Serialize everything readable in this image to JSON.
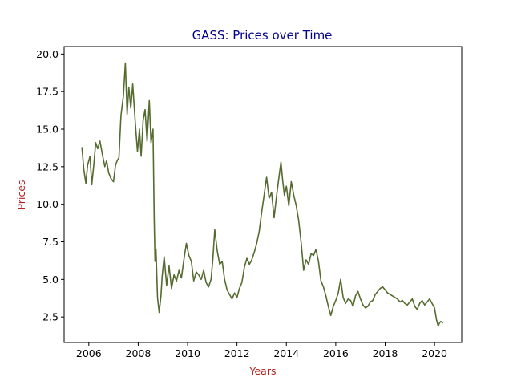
{
  "chart_data": {
    "type": "line",
    "title": "GASS: Prices over Time",
    "xlabel": "Years",
    "ylabel": "Prices",
    "xlim": [
      2005.0,
      2021.1
    ],
    "ylim": [
      0.8,
      20.5
    ],
    "x_ticks": [
      2006,
      2008,
      2010,
      2012,
      2014,
      2016,
      2018,
      2020
    ],
    "x_tick_labels": [
      "2006",
      "2008",
      "2010",
      "2012",
      "2014",
      "2016",
      "2018",
      "2020"
    ],
    "y_ticks": [
      2.5,
      5.0,
      7.5,
      10.0,
      12.5,
      15.0,
      17.5,
      20.0
    ],
    "y_tick_labels": [
      "2.5",
      "5.0",
      "7.5",
      "10.0",
      "12.5",
      "15.0",
      "17.5",
      "20.0"
    ],
    "grid": false,
    "legend": "none",
    "line_color": "#556b2f",
    "series": [
      {
        "x": [
          2005.72,
          2005.8,
          2005.88,
          2005.95,
          2006.05,
          2006.12,
          2006.2,
          2006.28,
          2006.36,
          2006.45,
          2006.55,
          2006.65,
          2006.72,
          2006.8,
          2006.9,
          2007.0,
          2007.08,
          2007.15,
          2007.22,
          2007.3,
          2007.4,
          2007.48,
          2007.55,
          2007.62,
          2007.7,
          2007.78,
          2007.88,
          2007.97,
          2008.05,
          2008.12,
          2008.2,
          2008.28,
          2008.36,
          2008.45,
          2008.52,
          2008.6,
          2008.65,
          2008.68,
          2008.72,
          2008.78,
          2008.85,
          2008.92,
          2008.97,
          2009.05,
          2009.15,
          2009.25,
          2009.35,
          2009.45,
          2009.55,
          2009.65,
          2009.75,
          2009.85,
          2009.95,
          2010.05,
          2010.15,
          2010.25,
          2010.35,
          2010.45,
          2010.55,
          2010.65,
          2010.75,
          2010.85,
          2010.95,
          2011.02,
          2011.1,
          2011.2,
          2011.3,
          2011.4,
          2011.5,
          2011.6,
          2011.7,
          2011.8,
          2011.9,
          2012.0,
          2012.1,
          2012.2,
          2012.3,
          2012.4,
          2012.5,
          2012.6,
          2012.7,
          2012.8,
          2012.9,
          2013.0,
          2013.1,
          2013.2,
          2013.3,
          2013.4,
          2013.5,
          2013.6,
          2013.7,
          2013.78,
          2013.85,
          2013.92,
          2014.0,
          2014.1,
          2014.2,
          2014.3,
          2014.4,
          2014.5,
          2014.6,
          2014.7,
          2014.8,
          2014.9,
          2015.0,
          2015.1,
          2015.2,
          2015.3,
          2015.4,
          2015.5,
          2015.6,
          2015.7,
          2015.8,
          2015.9,
          2016.0,
          2016.1,
          2016.2,
          2016.3,
          2016.4,
          2016.5,
          2016.6,
          2016.7,
          2016.8,
          2016.9,
          2017.0,
          2017.1,
          2017.2,
          2017.3,
          2017.4,
          2017.5,
          2017.6,
          2017.7,
          2017.8,
          2017.9,
          2018.0,
          2018.1,
          2018.2,
          2018.3,
          2018.4,
          2018.5,
          2018.6,
          2018.7,
          2018.8,
          2018.9,
          2019.0,
          2019.1,
          2019.2,
          2019.3,
          2019.4,
          2019.5,
          2019.6,
          2019.7,
          2019.8,
          2019.9,
          2020.0,
          2020.08,
          2020.15,
          2020.2,
          2020.25,
          2020.35
        ],
        "y": [
          13.8,
          12.3,
          11.4,
          12.6,
          13.2,
          11.3,
          12.6,
          14.1,
          13.7,
          14.2,
          13.3,
          12.5,
          12.9,
          12.1,
          11.7,
          11.5,
          12.6,
          12.9,
          13.1,
          15.9,
          17.2,
          19.4,
          16.0,
          17.8,
          16.4,
          18.0,
          15.5,
          13.5,
          15.0,
          13.2,
          15.6,
          16.3,
          14.2,
          16.9,
          14.1,
          15.0,
          8.9,
          6.2,
          7.0,
          3.8,
          2.8,
          3.9,
          5.2,
          6.5,
          4.6,
          5.9,
          4.4,
          5.3,
          4.9,
          5.6,
          5.1,
          6.3,
          7.4,
          6.6,
          6.2,
          4.9,
          5.5,
          5.3,
          5.0,
          5.6,
          4.8,
          4.5,
          5.0,
          6.3,
          8.3,
          6.9,
          6.0,
          6.2,
          5.0,
          4.3,
          4.0,
          3.7,
          4.1,
          3.8,
          4.4,
          4.8,
          5.8,
          6.4,
          6.0,
          6.3,
          6.8,
          7.4,
          8.2,
          9.5,
          10.6,
          11.8,
          10.4,
          10.8,
          9.1,
          10.5,
          11.8,
          12.8,
          11.6,
          10.6,
          11.2,
          9.9,
          11.5,
          10.6,
          9.9,
          8.9,
          7.4,
          5.6,
          6.3,
          6.0,
          6.7,
          6.6,
          7.0,
          6.2,
          4.9,
          4.5,
          3.9,
          3.2,
          2.6,
          3.2,
          3.6,
          4.1,
          5.0,
          3.8,
          3.4,
          3.7,
          3.6,
          3.2,
          3.9,
          4.2,
          3.7,
          3.3,
          3.1,
          3.2,
          3.5,
          3.6,
          4.0,
          4.2,
          4.4,
          4.5,
          4.3,
          4.1,
          4.0,
          3.9,
          3.8,
          3.7,
          3.5,
          3.6,
          3.4,
          3.3,
          3.5,
          3.7,
          3.2,
          3.0,
          3.4,
          3.6,
          3.3,
          3.5,
          3.7,
          3.4,
          3.1,
          2.3,
          1.9,
          2.1,
          2.2,
          2.1
        ]
      }
    ]
  }
}
